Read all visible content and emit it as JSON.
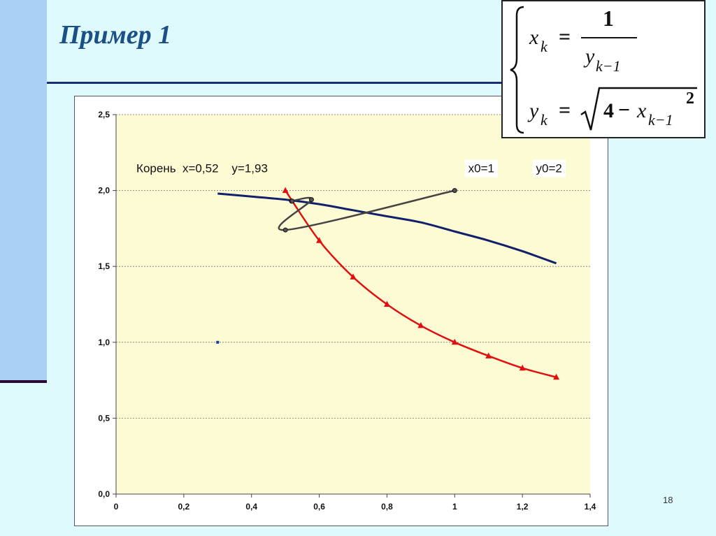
{
  "slide": {
    "title": "Пример 1",
    "page_number": "18"
  },
  "formula": {
    "line1_lhs": "x",
    "line1_lhs_sub": "k",
    "eq": "=",
    "line1_num": "1",
    "line1_den": "y",
    "line1_den_sub": "k−1",
    "line2_lhs": "y",
    "line2_lhs_sub": "k",
    "line2_rad_const": "4",
    "line2_minus": "−",
    "line2_rad_var": "x",
    "line2_rad_sub": "k−1",
    "line2_exp": "2"
  },
  "chart_data": {
    "type": "line",
    "xlim": [
      0,
      1.4
    ],
    "ylim": [
      0,
      2.5
    ],
    "x_ticks": [
      0,
      0.2,
      0.4,
      0.6,
      0.8,
      1.0,
      1.2,
      1.4
    ],
    "x_tick_labels": [
      "0",
      "0,2",
      "0,4",
      "0,6",
      "0,8",
      "1",
      "1,2",
      "1,4"
    ],
    "y_ticks": [
      0,
      0.5,
      1.0,
      1.5,
      2.0,
      2.5
    ],
    "y_tick_labels": [
      "0,0",
      "0,5",
      "1,0",
      "1,5",
      "2,0",
      "2,5"
    ],
    "grid": "horizontal",
    "plot_background": "#fdfbd4",
    "series": [
      {
        "color": "#10206a",
        "marker": "none",
        "x": [
          0.3,
          0.4,
          0.5,
          0.6,
          0.7,
          0.8,
          0.9,
          1.0,
          1.1,
          1.2,
          1.3
        ],
        "y": [
          1.98,
          1.96,
          1.94,
          1.91,
          1.87,
          1.83,
          1.79,
          1.73,
          1.67,
          1.6,
          1.52
        ]
      },
      {
        "color": "#e01010",
        "marker": "triangle",
        "x": [
          0.5,
          0.6,
          0.7,
          0.8,
          0.9,
          1.0,
          1.1,
          1.2,
          1.3
        ],
        "y": [
          2.0,
          1.67,
          1.43,
          1.25,
          1.11,
          1.0,
          0.91,
          0.83,
          0.77
        ]
      },
      {
        "color": "#444444",
        "marker": "circle",
        "x": [
          1.0,
          0.5,
          0.577,
          0.518,
          0.52
        ],
        "y": [
          2.0,
          1.74,
          1.94,
          1.93,
          1.93
        ]
      },
      {
        "color": "#1a3aa0",
        "marker": "square",
        "x": [
          0.3
        ],
        "y": [
          1.0
        ]
      }
    ],
    "annotations": [
      {
        "text": "Корень  x=0,52    y=1,93",
        "x": 0.06,
        "y": 2.12,
        "box": false
      },
      {
        "text": "x0=1",
        "x": 1.04,
        "y": 2.12,
        "box": true
      },
      {
        "text": "y0=2",
        "x": 1.24,
        "y": 2.12,
        "box": true
      }
    ]
  }
}
